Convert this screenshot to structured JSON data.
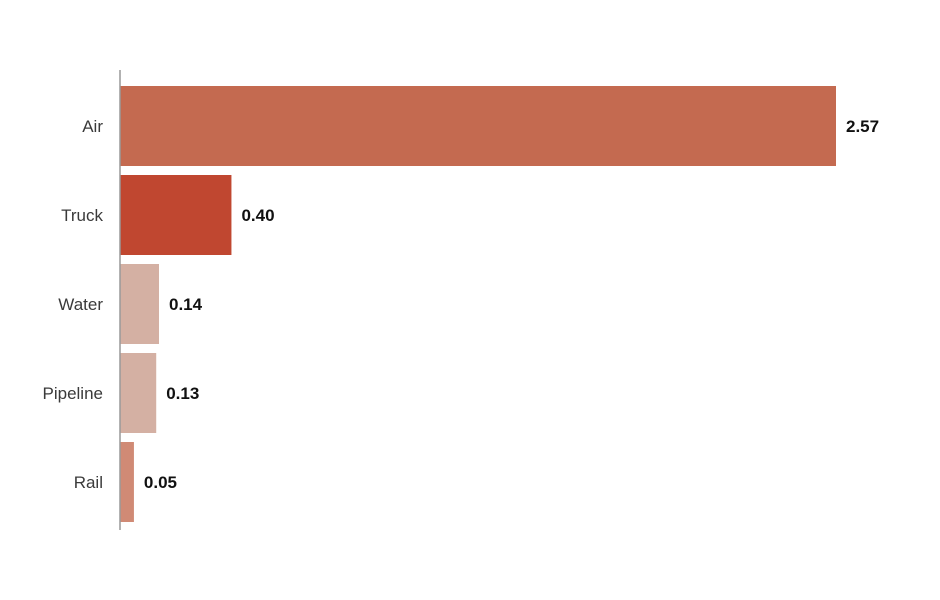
{
  "chart_data": {
    "type": "bar",
    "orientation": "horizontal",
    "categories": [
      "Air",
      "Truck",
      "Water",
      "Pipeline",
      "Rail"
    ],
    "values": [
      2.57,
      0.4,
      0.14,
      0.13,
      0.05
    ],
    "value_labels": [
      "2.57",
      "0.40",
      "0.14",
      "0.13",
      "0.05"
    ],
    "colors": [
      "#c46a50",
      "#c04730",
      "#d4b0a3",
      "#d4b0a3",
      "#d08a75"
    ],
    "axis_color": "#999999",
    "xlim": [
      0,
      2.57
    ],
    "grid": false,
    "title": "",
    "xlabel": "",
    "ylabel": ""
  }
}
